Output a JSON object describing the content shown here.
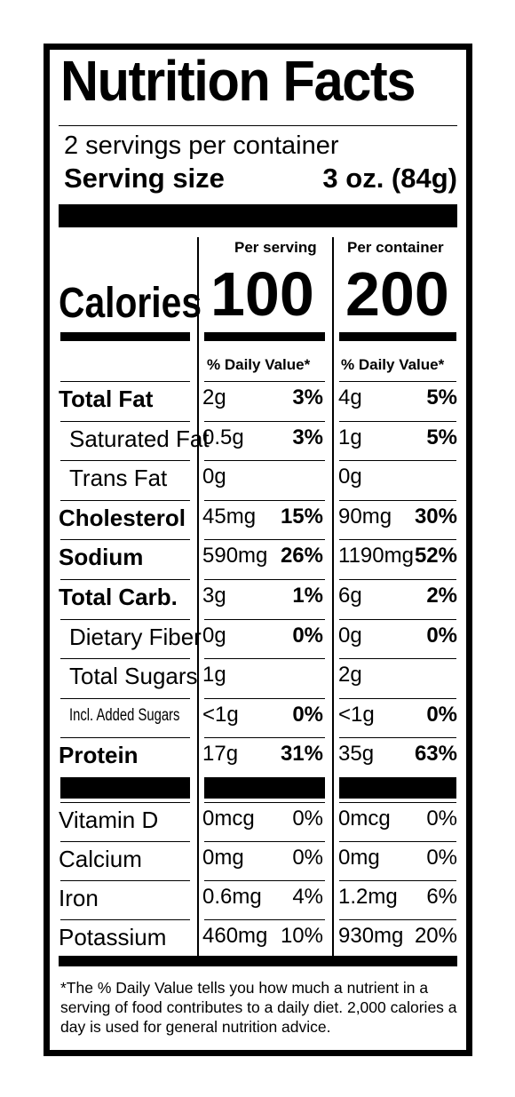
{
  "title": "Nutrition Facts",
  "servings_per_container": "2 servings per container",
  "serving_size_label": "Serving size",
  "serving_size_value": "3 oz. (84g)",
  "col1_header": "Per serving",
  "col2_header": "Per container",
  "calories_label": "Calories",
  "calories_per_serving": "100",
  "calories_per_container": "200",
  "dv_header_1": "% Daily Value*",
  "dv_header_2": "% Daily Value*",
  "nutrients": [
    {
      "name": "Total Fat",
      "a1": "2g",
      "p1": "3%",
      "a2": "4g",
      "p2": "5%"
    },
    {
      "name": "Saturated Fat",
      "a1": "0.5g",
      "p1": "3%",
      "a2": "1g",
      "p2": "5%"
    },
    {
      "name": "Trans Fat",
      "a1": "0g",
      "p1": "",
      "a2": "0g",
      "p2": ""
    },
    {
      "name": "Cholesterol",
      "a1": "45mg",
      "p1": "15%",
      "a2": "90mg",
      "p2": "30%"
    },
    {
      "name": "Sodium",
      "a1": "590mg",
      "p1": "26%",
      "a2": "1190mg",
      "p2": "52%"
    },
    {
      "name": "Total Carb.",
      "a1": "3g",
      "p1": "1%",
      "a2": "6g",
      "p2": "2%"
    },
    {
      "name": "Dietary Fiber",
      "a1": "0g",
      "p1": "0%",
      "a2": "0g",
      "p2": "0%"
    },
    {
      "name": "Total Sugars",
      "a1": "1g",
      "p1": "",
      "a2": "2g",
      "p2": ""
    },
    {
      "name": "Incl. Added Sugars",
      "a1": "<1g",
      "p1": "0%",
      "a2": "<1g",
      "p2": "0%"
    },
    {
      "name": "Protein",
      "a1": "17g",
      "p1": "31%",
      "a2": "35g",
      "p2": "63%"
    }
  ],
  "vitamins": [
    {
      "name": "Vitamin D",
      "a1": "0mcg",
      "p1": "0%",
      "a2": "0mcg",
      "p2": "0%"
    },
    {
      "name": "Calcium",
      "a1": "0mg",
      "p1": "0%",
      "a2": "0mg",
      "p2": "0%"
    },
    {
      "name": "Iron",
      "a1": "0.6mg",
      "p1": "4%",
      "a2": "1.2mg",
      "p2": "6%"
    },
    {
      "name": "Potassium",
      "a1": "460mg",
      "p1": "10%",
      "a2": "930mg",
      "p2": "20%"
    }
  ],
  "footnote": "*The % Daily Value tells you how much a nutrient in a serving of food contributes to a daily diet. 2,000 calories a day is used for general nutrition advice."
}
